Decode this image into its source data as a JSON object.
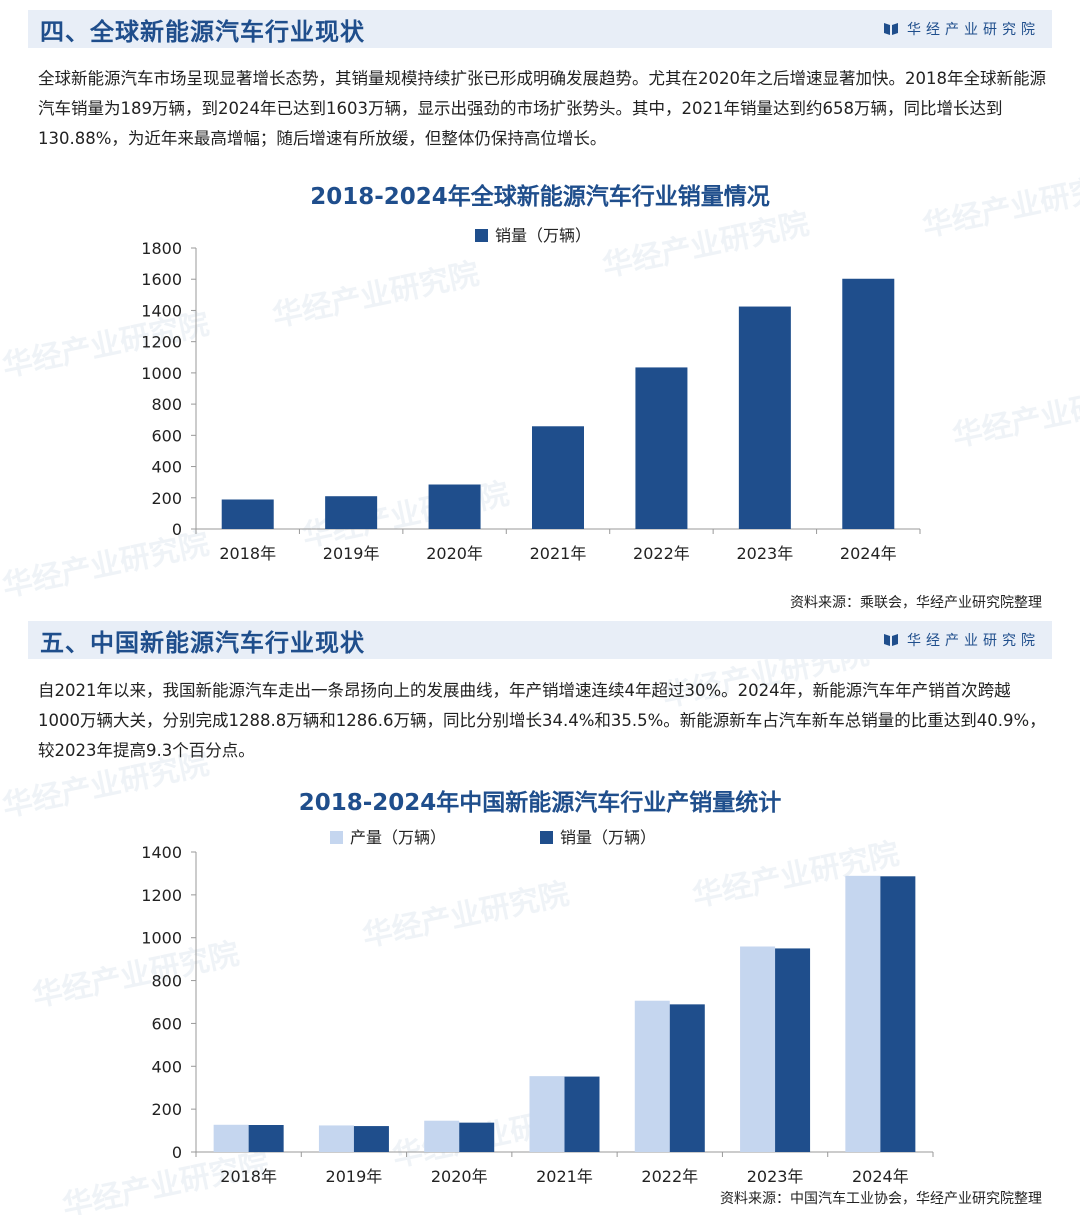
{
  "brand": {
    "name": "华经产业研究院",
    "icon": "book-logo-icon"
  },
  "section4": {
    "title": "四、全球新能源汽车行业现状",
    "paragraph": "全球新能源汽车市场呈现显著增长态势，其销量规模持续扩张已形成明确发展趋势。尤其在2020年之后增速显著加快。2018年全球新能源汽车销量为189万辆，到2024年已达到1603万辆，显示出强劲的市场扩张势头。其中，2021年销量达到约658万辆，同比增长达到130.88%，为近年来最高增幅；随后增速有所放缓，但整体仍保持高位增长。",
    "source": "资料来源：乘联会，华经产业研究院整理"
  },
  "section5": {
    "title": "五、中国新能源汽车行业现状",
    "paragraph": "自2021年以来，我国新能源汽车走出一条昂扬向上的发展曲线，年产销增速连续4年超过30%。2024年，新能源汽车年产销首次跨越1000万辆大关，分别完成1288.8万辆和1286.6万辆，同比分别增长34.4%和35.5%。新能源新车占汽车新车总销量的比重达到40.9%，较2023年提高9.3个百分点。",
    "source": "资料来源：中国汽车工业协会，华经产业研究院整理"
  },
  "watermark_text": "华经产业研究院",
  "colors": {
    "dark_blue": "#1f4e8c",
    "light_blue": "#c5d6ef",
    "header_bg": "#e8eef7"
  },
  "chart_data": [
    {
      "type": "bar",
      "title": "2018-2024年全球新能源汽车行业销量情况",
      "categories": [
        "2018年",
        "2019年",
        "2020年",
        "2021年",
        "2022年",
        "2023年",
        "2024年"
      ],
      "series": [
        {
          "name": "销量（万辆）",
          "values": [
            189,
            210,
            285,
            658,
            1035,
            1425,
            1603
          ],
          "color": "#1f4e8c"
        }
      ],
      "ylim": [
        0,
        1800
      ],
      "yticks": [
        0,
        200,
        400,
        600,
        800,
        1000,
        1200,
        1400,
        1600,
        1800
      ],
      "legend": "top-center",
      "grid": false
    },
    {
      "type": "bar",
      "title": "2018-2024年中国新能源汽车行业产销量统计",
      "categories": [
        "2018年",
        "2019年",
        "2020年",
        "2021年",
        "2022年",
        "2023年",
        "2024年"
      ],
      "series": [
        {
          "name": "产量（万辆）",
          "values": [
            127,
            124,
            146,
            354,
            706,
            959,
            1288.8
          ],
          "color": "#c5d6ef"
        },
        {
          "name": "销量（万辆）",
          "values": [
            126,
            121,
            137,
            352,
            689,
            950,
            1286.6
          ],
          "color": "#1f4e8c"
        }
      ],
      "ylim": [
        0,
        1400
      ],
      "yticks": [
        0,
        200,
        400,
        600,
        800,
        1000,
        1200,
        1400
      ],
      "legend": "top-center",
      "grid": false
    }
  ]
}
